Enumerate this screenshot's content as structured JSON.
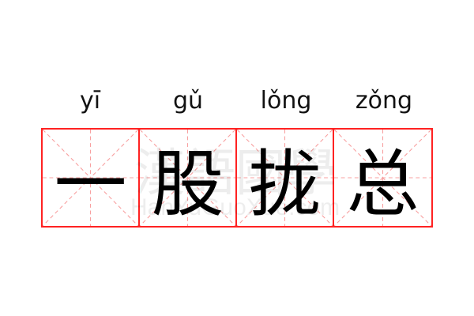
{
  "characters": [
    {
      "hanzi": "一",
      "pinyin": "yī"
    },
    {
      "hanzi": "股",
      "pinyin": "gǔ"
    },
    {
      "hanzi": "拢",
      "pinyin": "lǒng"
    },
    {
      "hanzi": "总",
      "pinyin": "zǒng"
    }
  ],
  "watermark": {
    "chinese": "漢語國學",
    "latin": "HanYuGuoXue.com"
  },
  "colors": {
    "grid_border": "#ff2222",
    "guide_lines": "#f8a0a0",
    "text": "#000000"
  }
}
